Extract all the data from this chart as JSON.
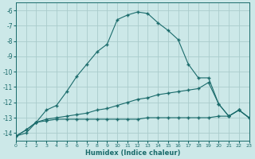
{
  "xlabel": "Humidex (Indice chaleur)",
  "bg_color": "#cce8e8",
  "grid_color": "#aacccc",
  "line_color": "#1a6b6b",
  "xlim": [
    0,
    23
  ],
  "ylim": [
    -14.5,
    -5.5
  ],
  "xticks": [
    0,
    1,
    2,
    3,
    4,
    5,
    6,
    7,
    8,
    9,
    10,
    11,
    12,
    13,
    14,
    15,
    16,
    17,
    18,
    19,
    20,
    21,
    22,
    23
  ],
  "yticks": [
    -6,
    -7,
    -8,
    -9,
    -10,
    -11,
    -12,
    -13,
    -14
  ],
  "curve1_x": [
    0,
    1,
    2,
    3,
    4,
    5,
    6,
    7,
    8,
    9,
    10,
    11,
    12,
    13,
    14,
    15,
    16,
    17,
    18,
    19,
    20,
    21,
    22,
    23
  ],
  "curve1_y": [
    -14.2,
    -14.0,
    -13.3,
    -12.5,
    -12.2,
    -11.3,
    -10.3,
    -9.5,
    -8.7,
    -8.2,
    -6.6,
    -6.3,
    -6.1,
    -6.2,
    -6.8,
    -7.3,
    -7.9,
    -9.5,
    -10.4,
    -10.4,
    -12.1,
    -12.9,
    -12.5,
    -13.0
  ],
  "curve2_x": [
    0,
    1,
    2,
    3,
    4,
    5,
    6,
    7,
    8,
    9,
    10,
    11,
    12,
    13,
    14,
    15,
    16,
    17,
    18,
    19,
    20,
    21,
    22,
    23
  ],
  "curve2_y": [
    -14.2,
    -13.8,
    -13.3,
    -13.1,
    -13.0,
    -12.9,
    -12.8,
    -12.7,
    -12.5,
    -12.4,
    -12.2,
    -12.0,
    -11.8,
    -11.7,
    -11.5,
    -11.4,
    -11.3,
    -11.2,
    -11.1,
    -10.7,
    -12.1,
    -12.9,
    -12.5,
    -13.0
  ],
  "curve3_x": [
    0,
    1,
    2,
    3,
    4,
    5,
    6,
    7,
    8,
    9,
    10,
    11,
    12,
    13,
    14,
    15,
    16,
    17,
    18,
    19,
    20,
    21,
    22,
    23
  ],
  "curve3_y": [
    -14.2,
    -13.8,
    -13.3,
    -13.2,
    -13.1,
    -13.1,
    -13.1,
    -13.1,
    -13.1,
    -13.1,
    -13.1,
    -13.1,
    -13.1,
    -13.0,
    -13.0,
    -13.0,
    -13.0,
    -13.0,
    -13.0,
    -13.0,
    -12.9,
    -12.9,
    -12.5,
    -13.0
  ]
}
